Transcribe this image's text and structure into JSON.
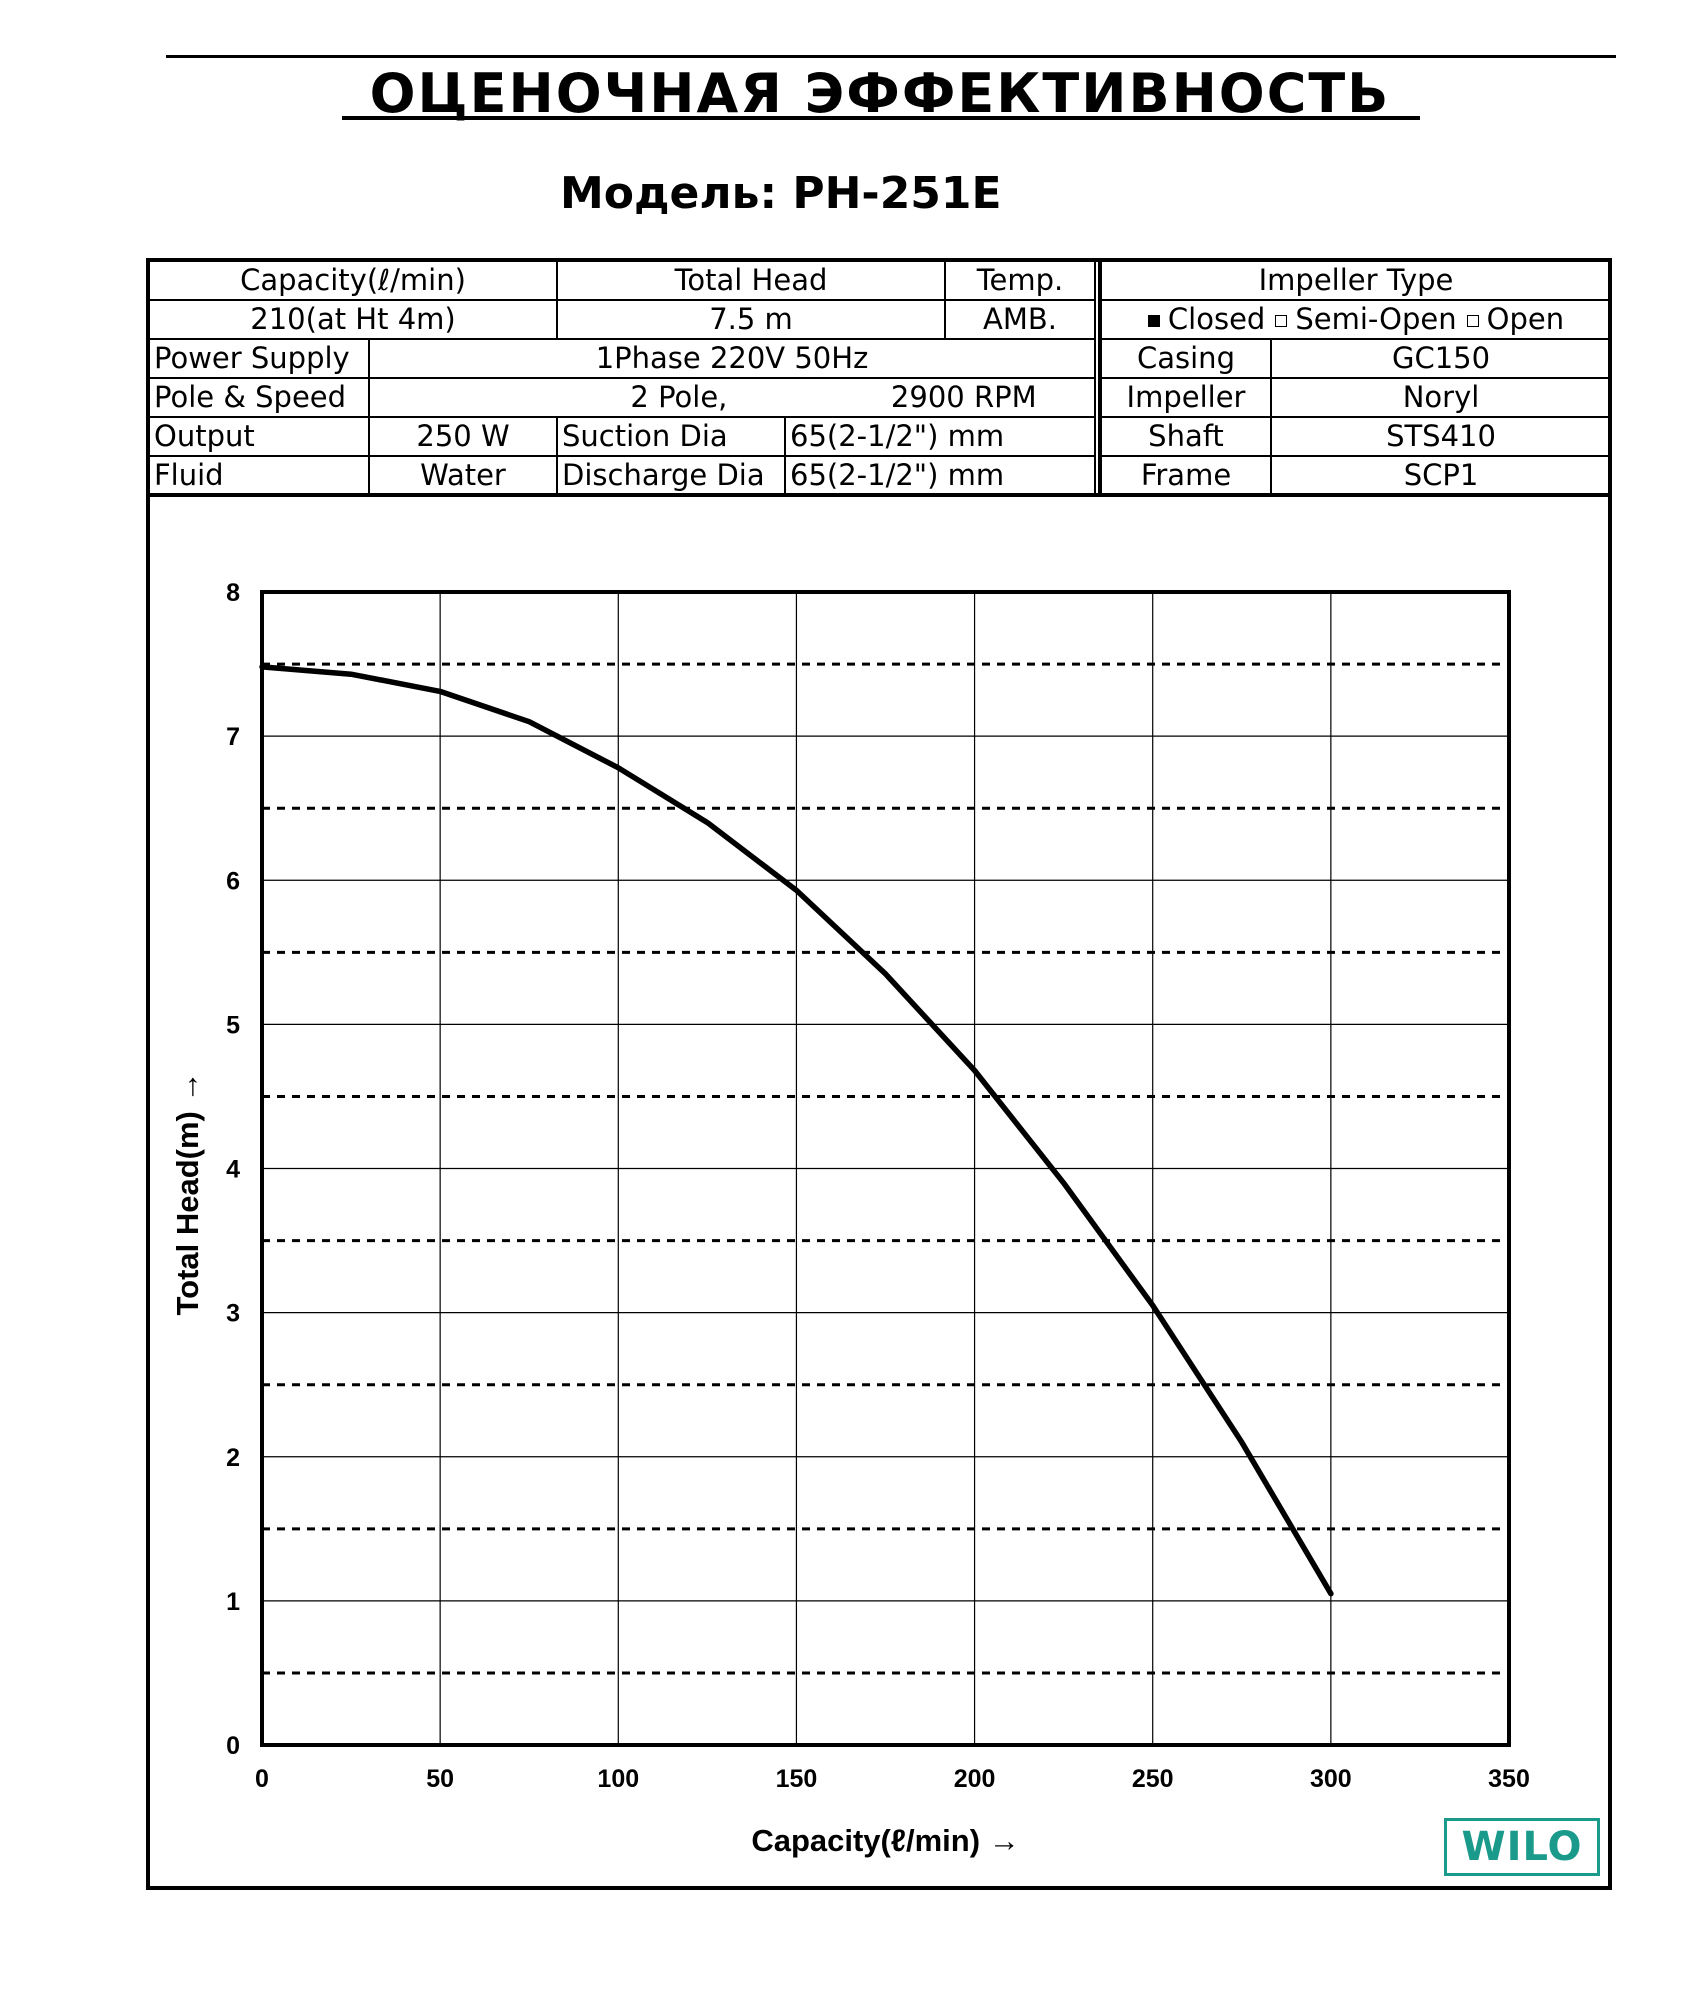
{
  "title": "ОЦЕНОЧНАЯ ЭФФЕКТИВНОСТЬ",
  "model": "Модель: PH-251E",
  "spec": {
    "capacity_label": "Capacity(ℓ/min)",
    "capacity_value": "210(at Ht 4m)",
    "total_head_label": "Total Head",
    "total_head_value": "7.5 m",
    "temp_label": "Temp.",
    "temp_value": "AMB.",
    "power_supply_label": "Power Supply",
    "power_supply_value": "1Phase 220V 50Hz",
    "pole_speed_label": "Pole & Speed",
    "pole_value": "2 Pole,",
    "speed_value": "2900 RPM",
    "output_label": "Output",
    "output_value": "250 W",
    "suction_label": "Suction Dia",
    "suction_value": "65(2-1/2\") mm",
    "fluid_label": "Fluid",
    "fluid_value": "Water",
    "discharge_label": "Discharge Dia",
    "discharge_value": "65(2-1/2\") mm",
    "impeller_type_label": "Impeller Type",
    "impeller_options": {
      "closed": "Closed",
      "semi_open": "Semi-Open",
      "open": "Open",
      "selected": "Closed"
    },
    "casing_label": "Casing",
    "casing_value": "GC150",
    "impeller_label": "Impeller",
    "impeller_value": "Noryl",
    "shaft_label": "Shaft",
    "shaft_value": "STS410",
    "frame_label": "Frame",
    "frame_value": "SCP1"
  },
  "logo": "WILO",
  "logo_color": "#1a9a8a",
  "chart_data": {
    "type": "line",
    "xlabel": "Capacity(ℓ/min) →",
    "ylabel": "Total Head(m) →",
    "xlim": [
      0,
      350
    ],
    "ylim": [
      0,
      8
    ],
    "xticks": [
      0,
      50,
      100,
      150,
      200,
      250,
      300,
      350
    ],
    "yticks": [
      0,
      1,
      2,
      3,
      4,
      5,
      6,
      7,
      8
    ],
    "grid": "solid at integer heads and every 50 ℓ/min; dashed at half-metre heads",
    "series": [
      {
        "x": [
          0,
          25,
          50,
          75,
          100,
          125,
          150,
          175,
          200,
          225,
          250,
          275,
          300
        ],
        "y": [
          7.48,
          7.43,
          7.31,
          7.1,
          6.78,
          6.4,
          5.93,
          5.35,
          4.68,
          3.9,
          3.05,
          2.1,
          1.05
        ],
        "color": "#000000"
      }
    ]
  }
}
